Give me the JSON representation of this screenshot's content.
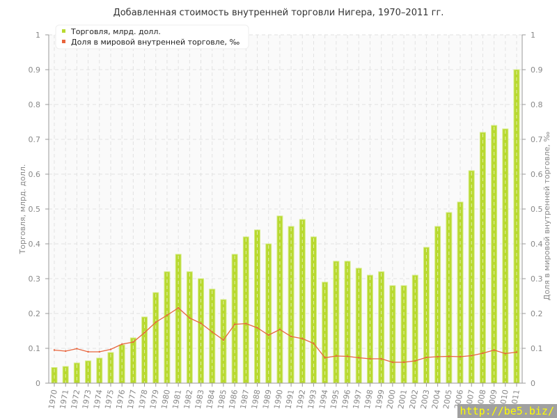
{
  "chart_data": {
    "type": "bar",
    "title": "Добавленная стоимость внутренней торговли Нигера, 1970–2011 гг.",
    "ylabel": "Торговля, млрд. долл.",
    "ylabel_right": "Доля в мировой внутренней торговле, ‰",
    "ylim": [
      0,
      1
    ],
    "ylim_right": [
      0,
      1
    ],
    "yticks": [
      "0",
      "0.1",
      "0.2",
      "0.3",
      "0.4",
      "0.5",
      "0.6",
      "0.7",
      "0.8",
      "0.9",
      "1"
    ],
    "grid": true,
    "legend_placement": "top-left",
    "categories": [
      "1970",
      "1971",
      "1972",
      "1973",
      "1974",
      "1975",
      "1976",
      "1977",
      "1978",
      "1979",
      "1980",
      "1981",
      "1982",
      "1983",
      "1984",
      "1985",
      "1986",
      "1987",
      "1988",
      "1989",
      "1990",
      "1991",
      "1992",
      "1993",
      "1994",
      "1995",
      "1996",
      "1997",
      "1998",
      "1999",
      "2000",
      "2001",
      "2002",
      "2003",
      "2004",
      "2005",
      "2006",
      "2007",
      "2008",
      "2009",
      "2010",
      "2011"
    ],
    "series": [
      {
        "name": "Торговля, млрд. долл.",
        "type": "bar",
        "axis": "left",
        "color": "#b8d930",
        "values": [
          0.045,
          0.048,
          0.058,
          0.064,
          0.072,
          0.088,
          0.11,
          0.13,
          0.19,
          0.26,
          0.32,
          0.37,
          0.32,
          0.3,
          0.27,
          0.24,
          0.37,
          0.42,
          0.44,
          0.4,
          0.48,
          0.45,
          0.47,
          0.42,
          0.29,
          0.35,
          0.35,
          0.33,
          0.31,
          0.32,
          0.28,
          0.28,
          0.31,
          0.39,
          0.45,
          0.49,
          0.52,
          0.61,
          0.72,
          0.74,
          0.73,
          0.9
        ]
      },
      {
        "name": "Доля в мировой внутренней торговле, ‰",
        "type": "line",
        "axis": "right",
        "color": "#e8643c",
        "values": [
          0.095,
          0.092,
          0.099,
          0.09,
          0.09,
          0.097,
          0.112,
          0.118,
          0.145,
          0.175,
          0.195,
          0.216,
          0.187,
          0.172,
          0.147,
          0.124,
          0.169,
          0.171,
          0.159,
          0.138,
          0.154,
          0.134,
          0.128,
          0.114,
          0.073,
          0.078,
          0.077,
          0.073,
          0.07,
          0.07,
          0.06,
          0.06,
          0.064,
          0.074,
          0.076,
          0.077,
          0.076,
          0.079,
          0.086,
          0.095,
          0.085,
          0.089
        ]
      }
    ]
  },
  "watermark": "http://be5.biz/"
}
